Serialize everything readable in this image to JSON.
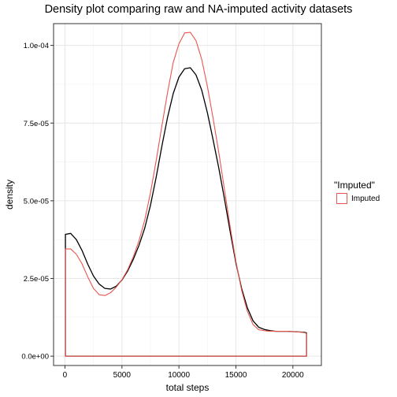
{
  "chart_data": {
    "type": "area",
    "title": "Density plot comparing raw and NA-imputed activity datasets",
    "xlabel": "total steps",
    "ylabel": "density",
    "xlim": [
      -1000,
      22500
    ],
    "ylim": [
      -3e-06,
      0.000107
    ],
    "x_ticks": [
      0,
      5000,
      10000,
      15000,
      20000
    ],
    "x_tick_labels": [
      "0",
      "5000",
      "10000",
      "15000",
      "20000"
    ],
    "y_ticks": [
      0,
      2.5e-05,
      5e-05,
      7.5e-05,
      0.0001
    ],
    "y_tick_labels": [
      "0.0e+00",
      "2.5e-05",
      "5.0e-05",
      "7.5e-05",
      "1.0e-04"
    ],
    "grid": true,
    "legend": {
      "title": "\"Imputed\"",
      "position": "right",
      "entries": [
        {
          "label": "Imputed",
          "color": "#e8564e"
        }
      ]
    },
    "series": [
      {
        "color": "#000000",
        "x": [
          41,
          500,
          1000,
          1500,
          2000,
          2500,
          3000,
          3500,
          4000,
          4500,
          5000,
          5500,
          6000,
          6500,
          7000,
          7500,
          8000,
          8500,
          9000,
          9500,
          10000,
          10500,
          11000,
          11500,
          12000,
          12500,
          13000,
          13500,
          14000,
          14500,
          15000,
          15500,
          16000,
          16500,
          17000,
          17500,
          18000,
          18500,
          19000,
          19500,
          20000,
          20500,
          21000,
          21194
        ],
        "y": [
          3.92e-05,
          3.95e-05,
          3.75e-05,
          3.4e-05,
          2.96e-05,
          2.58e-05,
          2.32e-05,
          2.18e-05,
          2.16e-05,
          2.25e-05,
          2.45e-05,
          2.74e-05,
          3.12e-05,
          3.57e-05,
          4.12e-05,
          4.85e-05,
          5.75e-05,
          6.75e-05,
          7.68e-05,
          8.45e-05,
          8.98e-05,
          9.25e-05,
          9.28e-05,
          9.05e-05,
          8.56e-05,
          7.83e-05,
          6.96e-05,
          6.05e-05,
          5.05e-05,
          4e-05,
          3e-05,
          2.18e-05,
          1.56e-05,
          1.14e-05,
          9.3e-06,
          8.6e-06,
          8.2e-06,
          8e-06,
          8e-06,
          8e-06,
          7.9e-06,
          7.8e-06,
          7.7e-06,
          7.5e-06
        ]
      },
      {
        "name": "Imputed",
        "color": "#e8564e",
        "fill": "none",
        "x": [
          41,
          500,
          1000,
          1500,
          2000,
          2500,
          3000,
          3500,
          4000,
          4500,
          5000,
          5500,
          6000,
          6500,
          7000,
          7500,
          8000,
          8500,
          9000,
          9500,
          10000,
          10500,
          11000,
          11500,
          12000,
          12500,
          13000,
          13500,
          14000,
          14500,
          15000,
          15500,
          16000,
          16500,
          17000,
          17500,
          18000,
          18500,
          19000,
          19500,
          20000,
          20500,
          21000,
          21194
        ],
        "y": [
          3.45e-05,
          3.45e-05,
          3.28e-05,
          2.97e-05,
          2.55e-05,
          2.18e-05,
          1.98e-05,
          1.95e-05,
          2.04e-05,
          2.22e-05,
          2.46e-05,
          2.78e-05,
          3.2e-05,
          3.72e-05,
          4.38e-05,
          5.25e-05,
          6.28e-05,
          7.4e-05,
          8.48e-05,
          9.45e-05,
          0.0001005,
          0.000104,
          0.0001042,
          0.0001015,
          9.55e-05,
          8.68e-05,
          7.65e-05,
          6.55e-05,
          5.35e-05,
          4.15e-05,
          3.05e-05,
          2.12e-05,
          1.45e-05,
          1.02e-05,
          8.5e-06,
          8.2e-06,
          8e-06,
          8e-06,
          8e-06,
          8e-06,
          7.9e-06,
          7.8e-06,
          7.6e-06,
          7.3e-06
        ]
      }
    ]
  }
}
